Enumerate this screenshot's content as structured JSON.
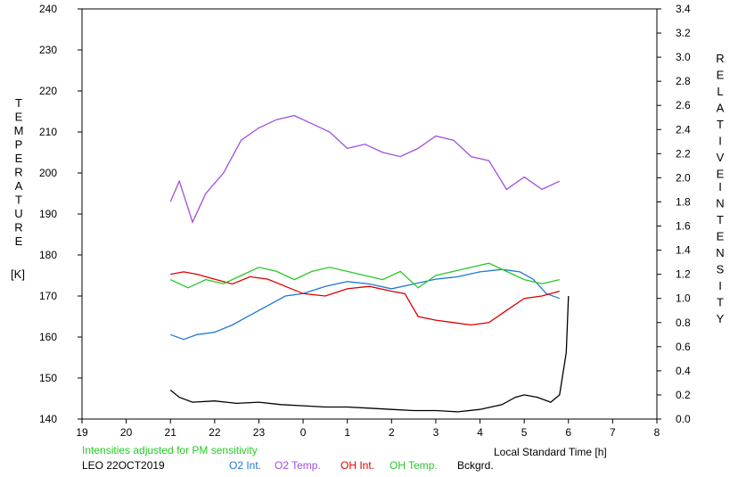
{
  "chart_data": {
    "type": "line",
    "xlabel": "Local Standard Time [h]",
    "x_ticks": [
      "19",
      "20",
      "21",
      "22",
      "23",
      "0",
      "1",
      "2",
      "3",
      "4",
      "5",
      "6",
      "7",
      "8"
    ],
    "xlim": [
      19,
      32
    ],
    "left_axis": {
      "label_letters": [
        "T",
        "E",
        "M",
        "P",
        "E",
        "R",
        "A",
        "T",
        "U",
        "R",
        "E"
      ],
      "unit": "[K]",
      "ylim": [
        140,
        240
      ],
      "ticks": [
        "140",
        "150",
        "160",
        "170",
        "180",
        "190",
        "200",
        "210",
        "220",
        "230",
        "240"
      ]
    },
    "right_axis": {
      "label_letters": [
        "R",
        "E",
        "L",
        "A",
        "T",
        "I",
        "V",
        "E"
      ],
      "label_letters_2": [
        "I",
        "N",
        "T",
        "E",
        "N",
        "S",
        "I",
        "T",
        "Y"
      ],
      "ylim": [
        0.0,
        3.4
      ],
      "ticks": [
        "0.0",
        "0.2",
        "0.4",
        "0.6",
        "0.8",
        "1.0",
        "1.2",
        "1.4",
        "1.6",
        "1.8",
        "2.0",
        "2.2",
        "2.4",
        "2.6",
        "2.8",
        "3.0",
        "3.2",
        "3.4"
      ]
    },
    "note": "Intensities adjusted for PM sensitivity",
    "site_label": "LEO 22OCT2019",
    "series": [
      {
        "name": "O2 Int.",
        "axis": "right",
        "color": "#1e78d2",
        "x": [
          21.0,
          21.3,
          21.6,
          22.0,
          22.4,
          22.8,
          23.2,
          23.6,
          24.0,
          24.5,
          25.0,
          25.5,
          26.0,
          26.5,
          27.0,
          27.5,
          28.0,
          28.5,
          28.9,
          29.2,
          29.5,
          29.8
        ],
        "y": [
          0.7,
          0.66,
          0.7,
          0.72,
          0.78,
          0.86,
          0.94,
          1.02,
          1.04,
          1.1,
          1.14,
          1.12,
          1.08,
          1.12,
          1.16,
          1.18,
          1.22,
          1.24,
          1.22,
          1.16,
          1.04,
          1.0
        ]
      },
      {
        "name": "O2 Temp.",
        "axis": "left",
        "color": "#a050dc",
        "x": [
          21.0,
          21.2,
          21.5,
          21.8,
          22.2,
          22.6,
          23.0,
          23.4,
          23.8,
          24.2,
          24.6,
          25.0,
          25.4,
          25.8,
          26.2,
          26.6,
          27.0,
          27.4,
          27.8,
          28.2,
          28.6,
          29.0,
          29.4,
          29.8
        ],
        "y": [
          193,
          198,
          188,
          195,
          200,
          208,
          211,
          213,
          214,
          212,
          210,
          206,
          207,
          205,
          204,
          206,
          209,
          208,
          204,
          203,
          196,
          199,
          196,
          198
        ]
      },
      {
        "name": "OH Int.",
        "axis": "right",
        "color": "#dc0000",
        "x": [
          21.0,
          21.3,
          21.6,
          22.0,
          22.4,
          22.8,
          23.2,
          23.6,
          24.0,
          24.5,
          25.0,
          25.5,
          26.0,
          26.3,
          26.6,
          27.0,
          27.4,
          27.8,
          28.2,
          28.6,
          29.0,
          29.4,
          29.8
        ],
        "y": [
          1.2,
          1.22,
          1.2,
          1.16,
          1.12,
          1.18,
          1.16,
          1.1,
          1.04,
          1.02,
          1.08,
          1.1,
          1.06,
          1.04,
          0.85,
          0.82,
          0.8,
          0.78,
          0.8,
          0.9,
          1.0,
          1.02,
          1.06
        ]
      },
      {
        "name": "OH Temp.",
        "axis": "left",
        "color": "#28c828",
        "x": [
          21.0,
          21.4,
          21.8,
          22.2,
          22.6,
          23.0,
          23.4,
          23.8,
          24.2,
          24.6,
          25.0,
          25.4,
          25.8,
          26.2,
          26.6,
          27.0,
          27.4,
          27.8,
          28.2,
          28.6,
          29.0,
          29.4,
          29.8
        ],
        "y": [
          174,
          172,
          174,
          173,
          175,
          177,
          176,
          174,
          176,
          177,
          176,
          175,
          174,
          176,
          172,
          175,
          176,
          177,
          178,
          176,
          174,
          173,
          174
        ]
      },
      {
        "name": "Bckgrd.",
        "axis": "right",
        "color": "#000000",
        "x": [
          21.0,
          21.2,
          21.5,
          22.0,
          22.5,
          23.0,
          23.5,
          24.0,
          24.5,
          25.0,
          25.5,
          26.0,
          26.5,
          27.0,
          27.5,
          28.0,
          28.5,
          28.8,
          29.0,
          29.3,
          29.6,
          29.8,
          29.95,
          30.0
        ],
        "y": [
          0.24,
          0.18,
          0.14,
          0.15,
          0.13,
          0.14,
          0.12,
          0.11,
          0.1,
          0.1,
          0.09,
          0.08,
          0.07,
          0.07,
          0.06,
          0.08,
          0.12,
          0.18,
          0.2,
          0.18,
          0.14,
          0.2,
          0.55,
          1.02
        ]
      }
    ]
  },
  "legend": [
    {
      "label": "O2 Int.",
      "color": "#1e78d2"
    },
    {
      "label": "O2 Temp.",
      "color": "#a050dc"
    },
    {
      "label": "OH Int.",
      "color": "#dc0000"
    },
    {
      "label": "OH Temp.",
      "color": "#28c828"
    },
    {
      "label": "Bckgrd.",
      "color": "#000000"
    }
  ],
  "colors": {
    "note": "#28c828"
  }
}
